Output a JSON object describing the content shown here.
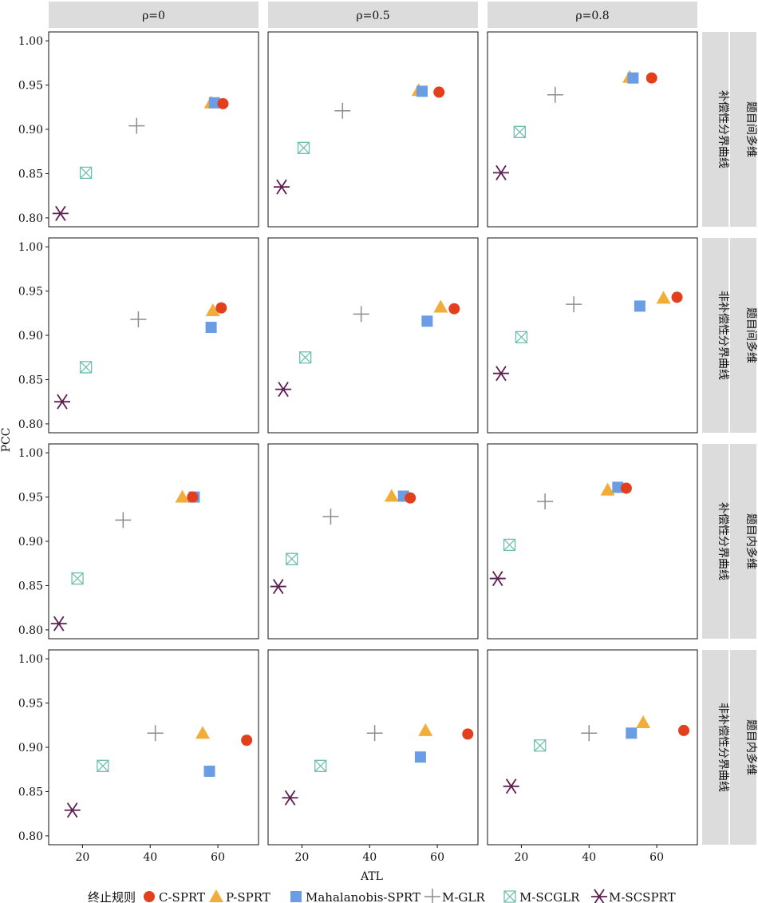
{
  "colors": {
    "strip_bg": "#dcdcdc",
    "C-SPRT": "#e23f1c",
    "P-SPRT": "#f2ad38",
    "Mahalanobis-SPRT": "#6b9de4",
    "M-GLR": "#8c8c8c",
    "M-SCGLR": "#6fbfae",
    "M-SCSPRT": "#5e1e50"
  },
  "chart_data": {
    "type": "scatter",
    "xlabel": "ATL",
    "ylabel": "PCC",
    "xlim": [
      10,
      72
    ],
    "ylim": [
      0.79,
      1.01
    ],
    "xticks": [
      "20",
      "40",
      "60"
    ],
    "xtick_values": [
      20,
      40,
      60
    ],
    "yticks": [
      "0.80",
      "0.85",
      "0.90",
      "0.95",
      "1.00"
    ],
    "ytick_values": [
      0.8,
      0.85,
      0.9,
      0.95,
      1.0
    ],
    "grid": false,
    "columns": [
      "ρ=0",
      "ρ=0.5",
      "ρ=0.8"
    ],
    "rows": [
      {
        "label_a": "补偿性分界曲线",
        "label_b": "题目间多维"
      },
      {
        "label_a": "非补偿性分界曲线",
        "label_b": "题目间多维"
      },
      {
        "label_a": "补偿性分界曲线",
        "label_b": "题目内多维"
      },
      {
        "label_a": "非补偿性分界曲线",
        "label_b": "题目内多维"
      }
    ],
    "legend": {
      "title": "终止规则",
      "position": "bottom",
      "items": [
        "C-SPRT",
        "P-SPRT",
        "Mahalanobis-SPRT",
        "M-GLR",
        "M-SCGLR",
        "M-SCSPRT"
      ]
    },
    "series_order": [
      "M-SCSPRT",
      "M-SCGLR",
      "M-GLR",
      "P-SPRT",
      "Mahalanobis-SPRT",
      "C-SPRT"
    ],
    "panels": [
      {
        "row": 0,
        "col": 0,
        "points": {
          "C-SPRT": [
            61.5,
            0.929
          ],
          "P-SPRT": [
            58,
            0.93
          ],
          "Mahalanobis-SPRT": [
            59,
            0.93
          ],
          "M-GLR": [
            36,
            0.904
          ],
          "M-SCGLR": [
            21,
            0.851
          ],
          "M-SCSPRT": [
            13.5,
            0.805
          ]
        }
      },
      {
        "row": 0,
        "col": 1,
        "points": {
          "C-SPRT": [
            60.5,
            0.942
          ],
          "P-SPRT": [
            54.5,
            0.944
          ],
          "Mahalanobis-SPRT": [
            55.5,
            0.943
          ],
          "M-GLR": [
            32,
            0.921
          ],
          "M-SCGLR": [
            20.5,
            0.879
          ],
          "M-SCSPRT": [
            14,
            0.835
          ]
        }
      },
      {
        "row": 0,
        "col": 2,
        "points": {
          "C-SPRT": [
            58.5,
            0.958
          ],
          "P-SPRT": [
            52,
            0.959
          ],
          "Mahalanobis-SPRT": [
            53,
            0.958
          ],
          "M-GLR": [
            30,
            0.939
          ],
          "M-SCGLR": [
            19.5,
            0.897
          ],
          "M-SCSPRT": [
            14,
            0.851
          ]
        }
      },
      {
        "row": 1,
        "col": 0,
        "points": {
          "C-SPRT": [
            61,
            0.931
          ],
          "P-SPRT": [
            58.5,
            0.928
          ],
          "Mahalanobis-SPRT": [
            58,
            0.909
          ],
          "M-GLR": [
            36.5,
            0.918
          ],
          "M-SCGLR": [
            21,
            0.864
          ],
          "M-SCSPRT": [
            14,
            0.825
          ]
        }
      },
      {
        "row": 1,
        "col": 1,
        "points": {
          "C-SPRT": [
            65,
            0.93
          ],
          "P-SPRT": [
            61,
            0.932
          ],
          "Mahalanobis-SPRT": [
            57,
            0.916
          ],
          "M-GLR": [
            37.5,
            0.924
          ],
          "M-SCGLR": [
            21,
            0.875
          ],
          "M-SCSPRT": [
            14.5,
            0.839
          ]
        }
      },
      {
        "row": 1,
        "col": 2,
        "points": {
          "C-SPRT": [
            66,
            0.943
          ],
          "P-SPRT": [
            62,
            0.942
          ],
          "Mahalanobis-SPRT": [
            55,
            0.933
          ],
          "M-GLR": [
            35.5,
            0.935
          ],
          "M-SCGLR": [
            20,
            0.898
          ],
          "M-SCSPRT": [
            14,
            0.857
          ]
        }
      },
      {
        "row": 2,
        "col": 0,
        "points": {
          "C-SPRT": [
            52.5,
            0.95
          ],
          "P-SPRT": [
            49.5,
            0.95
          ],
          "Mahalanobis-SPRT": [
            53,
            0.95
          ],
          "M-GLR": [
            32,
            0.924
          ],
          "M-SCGLR": [
            18.5,
            0.858
          ],
          "M-SCSPRT": [
            13,
            0.807
          ]
        }
      },
      {
        "row": 2,
        "col": 1,
        "points": {
          "C-SPRT": [
            52,
            0.949
          ],
          "P-SPRT": [
            46.5,
            0.951
          ],
          "Mahalanobis-SPRT": [
            50,
            0.951
          ],
          "M-GLR": [
            28.5,
            0.928
          ],
          "M-SCGLR": [
            17,
            0.88
          ],
          "M-SCSPRT": [
            13,
            0.849
          ]
        }
      },
      {
        "row": 2,
        "col": 2,
        "points": {
          "C-SPRT": [
            51,
            0.96
          ],
          "P-SPRT": [
            45.5,
            0.958
          ],
          "Mahalanobis-SPRT": [
            48.5,
            0.961
          ],
          "M-GLR": [
            27,
            0.945
          ],
          "M-SCGLR": [
            16.5,
            0.896
          ],
          "M-SCSPRT": [
            13,
            0.858
          ]
        }
      },
      {
        "row": 3,
        "col": 0,
        "points": {
          "C-SPRT": [
            68.5,
            0.908
          ],
          "P-SPRT": [
            55.5,
            0.916
          ],
          "Mahalanobis-SPRT": [
            57.5,
            0.873
          ],
          "M-GLR": [
            41.5,
            0.916
          ],
          "M-SCGLR": [
            26,
            0.879
          ],
          "M-SCSPRT": [
            17,
            0.829
          ]
        }
      },
      {
        "row": 3,
        "col": 1,
        "points": {
          "C-SPRT": [
            69,
            0.915
          ],
          "P-SPRT": [
            56.5,
            0.919
          ],
          "Mahalanobis-SPRT": [
            55,
            0.889
          ],
          "M-GLR": [
            41.5,
            0.916
          ],
          "M-SCGLR": [
            25.5,
            0.879
          ],
          "M-SCSPRT": [
            16.5,
            0.843
          ]
        }
      },
      {
        "row": 3,
        "col": 2,
        "points": {
          "C-SPRT": [
            68,
            0.919
          ],
          "P-SPRT": [
            56,
            0.928
          ],
          "Mahalanobis-SPRT": [
            52.5,
            0.916
          ],
          "M-GLR": [
            40,
            0.916
          ],
          "M-SCGLR": [
            25.5,
            0.902
          ],
          "M-SCSPRT": [
            17,
            0.856
          ]
        }
      }
    ]
  }
}
